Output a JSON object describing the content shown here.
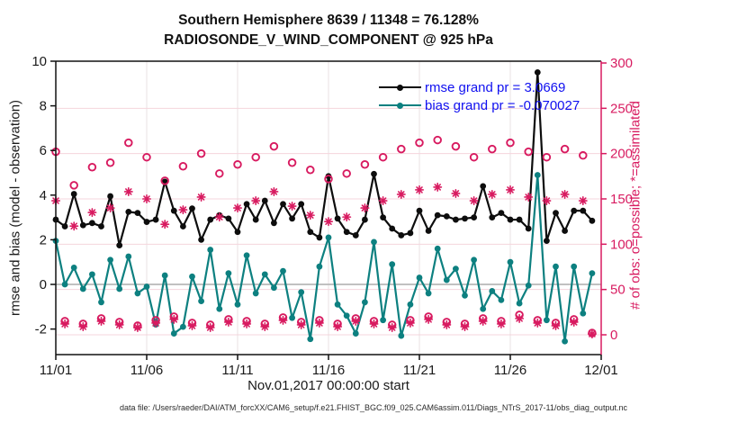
{
  "chart_data": {
    "type": "line",
    "title_line1": "Southern Hemisphere 8639 / 11348 = 76.128%",
    "title_line2": "RADIOSONDE_V_WIND_COMPONENT @ 925 hPa",
    "xlabel": "Nov.01,2017 00:00:00 start",
    "ylabel_left": "rmse and bias (model - observation)",
    "ylabel_right": "# of obs: o=possible; *=assimilated",
    "x_tick_labels": [
      "11/01",
      "11/06",
      "11/11",
      "11/16",
      "11/21",
      "11/26",
      "12/01"
    ],
    "x_tick_days": [
      0,
      5,
      10,
      15,
      20,
      25,
      30
    ],
    "x_range_days": [
      0,
      30
    ],
    "x_start_day": 0,
    "x_step_day": 0.5,
    "y_left_ticks": [
      10,
      8,
      6,
      4,
      2,
      0,
      -2
    ],
    "y_left_range": [
      -3.1,
      10
    ],
    "y_right_ticks": [
      300,
      250,
      200,
      150,
      100,
      50,
      0
    ],
    "y_right_range": [
      -22,
      300
    ],
    "grid": "on",
    "legend_position": "top-center-inside",
    "series": [
      {
        "name": "rmse",
        "axis": "left",
        "marker": "dot",
        "color": "#0d0d0d",
        "values": [
          2.9,
          2.6,
          4.05,
          2.65,
          2.75,
          2.6,
          3.95,
          1.75,
          3.25,
          3.2,
          2.8,
          2.9,
          4.6,
          3.3,
          2.6,
          3.4,
          2.0,
          2.9,
          3.1,
          2.95,
          2.35,
          3.6,
          2.9,
          3.75,
          2.75,
          3.6,
          2.95,
          3.6,
          2.35,
          2.1,
          4.85,
          2.95,
          2.35,
          2.2,
          2.9,
          4.95,
          3.0,
          2.5,
          2.2,
          2.3,
          3.3,
          2.4,
          3.1,
          3.05,
          2.9,
          2.95,
          3.0,
          4.4,
          3.0,
          3.2,
          2.9,
          2.9,
          2.5,
          9.5,
          1.95,
          3.2,
          2.4,
          3.3,
          3.3,
          2.85
        ]
      },
      {
        "name": "bias",
        "axis": "left",
        "marker": "dot",
        "color": "#0d8080",
        "values": [
          1.95,
          0.0,
          0.75,
          -0.2,
          0.45,
          -0.8,
          1.1,
          -0.2,
          1.25,
          -0.4,
          -0.1,
          -1.8,
          0.4,
          -2.2,
          -1.9,
          0.35,
          -0.75,
          1.55,
          -1.1,
          0.5,
          -0.9,
          1.3,
          -0.4,
          0.45,
          -0.15,
          0.6,
          -1.5,
          -0.35,
          -2.45,
          0.8,
          2.1,
          -0.9,
          -1.4,
          -2.2,
          -0.8,
          1.9,
          -1.6,
          0.9,
          -2.3,
          -0.9,
          0.3,
          -0.4,
          1.6,
          0.2,
          0.7,
          -0.5,
          1.1,
          -1.1,
          -0.3,
          -0.7,
          1.0,
          -0.85,
          -0.05,
          4.9,
          -1.6,
          0.8,
          -2.55,
          0.8,
          -1.3,
          0.5
        ]
      },
      {
        "name": "possible",
        "axis": "right",
        "marker": "open-circle",
        "color": "#d81b60",
        "values": [
          202,
          15,
          165,
          12,
          185,
          18,
          190,
          14,
          212,
          10,
          196,
          16,
          170,
          20,
          186,
          13,
          200,
          11,
          178,
          17,
          188,
          15,
          196,
          12,
          208,
          19,
          190,
          14,
          182,
          16,
          172,
          12,
          178,
          18,
          188,
          15,
          196,
          11,
          205,
          16,
          212,
          20,
          215,
          14,
          208,
          12,
          196,
          18,
          205,
          15,
          212,
          22,
          202,
          16,
          196,
          13,
          205,
          17,
          198,
          2
        ]
      },
      {
        "name": "assimilated",
        "axis": "right",
        "marker": "asterisk",
        "color": "#d81b60",
        "values": [
          148,
          12,
          120,
          9,
          135,
          15,
          140,
          11,
          158,
          8,
          150,
          13,
          122,
          17,
          138,
          10,
          152,
          8,
          130,
          14,
          140,
          12,
          148,
          9,
          158,
          16,
          142,
          11,
          132,
          13,
          125,
          9,
          130,
          15,
          140,
          12,
          148,
          8,
          155,
          13,
          160,
          17,
          163,
          11,
          156,
          9,
          148,
          15,
          155,
          12,
          160,
          18,
          152,
          13,
          148,
          10,
          155,
          14,
          148,
          1
        ]
      }
    ],
    "legend": [
      {
        "label": "rmse grand pr = 3.0669",
        "color": "#0d0d0d"
      },
      {
        "label": "bias grand pr = -0.070027",
        "color": "#0d8080"
      }
    ],
    "legend_text_color": "#1010f0",
    "accent_right_axis_color": "#d81b60",
    "grid_color": "#f5d5dc",
    "vgrid_color": "#e9e0e3",
    "zero_line_color": "#b8b8b8",
    "footer": "data file: /Users/raeder/DAI/ATM_forcXX/CAM6_setup/f.e21.FHIST_BGC.f09_025.CAM6assim.011/Diags_NTrS_2017-11/obs_diag_output.nc"
  }
}
